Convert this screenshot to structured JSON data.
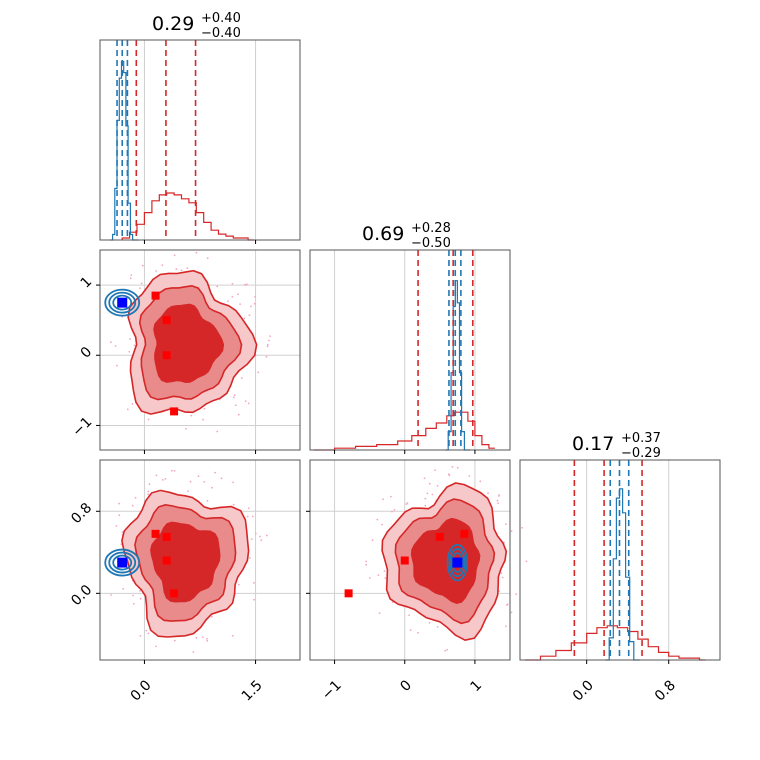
{
  "colors": {
    "posterior_red": "#d62728",
    "truth_blue": "#1f77b4",
    "fill_dark": "#d62728",
    "fill_mid": "#e98a8b",
    "fill_light": "#f6c8c9",
    "marker_red": "#ff0000",
    "marker_blue": "#0000ff",
    "frame": "#555555",
    "grid": "#d0d0d0"
  },
  "titles": {
    "p0": {
      "value": "0.29",
      "plus": "+0.40",
      "minus": "−0.40"
    },
    "p1": {
      "value": "0.69",
      "plus": "+0.28",
      "minus": "−0.50"
    },
    "p2": {
      "value": "0.17",
      "plus": "+0.37",
      "minus": "−0.29"
    }
  },
  "chart_data": {
    "type": "corner",
    "parameters": [
      "p0",
      "p1",
      "p2"
    ],
    "ranges": {
      "p0": [
        -0.6,
        2.1
      ],
      "p1": [
        -1.35,
        1.5
      ],
      "p2": [
        -0.65,
        1.3
      ]
    },
    "grid": true,
    "ticks": {
      "p0": {
        "values": [
          0.0,
          1.5
        ],
        "labels": [
          "0.0",
          "1.5"
        ]
      },
      "p1": {
        "values": [
          -1,
          0,
          1
        ],
        "labels": [
          "−1",
          "0",
          "1"
        ]
      },
      "p2": {
        "values": [
          0.0,
          0.8
        ],
        "labels": [
          "0.0",
          "0.8"
        ]
      }
    },
    "quantiles": {
      "red": {
        "p0": [
          -0.11,
          0.29,
          0.69
        ],
        "p1": [
          0.19,
          0.69,
          0.97
        ],
        "p2": [
          -0.12,
          0.17,
          0.54
        ]
      },
      "blue": {
        "p0": [
          -0.37,
          -0.3,
          -0.23
        ],
        "p1": [
          0.63,
          0.72,
          0.8
        ],
        "p2": [
          0.23,
          0.32,
          0.41
        ]
      }
    },
    "red_markers": {
      "p0": [
        0.15,
        0.3,
        0.3,
        0.4
      ],
      "p1": [
        0.85,
        0.5,
        0.0,
        -0.8
      ],
      "p2": [
        0.58,
        0.55,
        0.32,
        0.0
      ]
    },
    "blue_marker": {
      "p0": -0.3,
      "p1": 0.75,
      "p2": 0.3
    },
    "series": [
      {
        "panel": "p0",
        "color": "red",
        "kind": "step-histogram",
        "x": [
          -0.3,
          -0.2,
          -0.1,
          0.0,
          0.1,
          0.2,
          0.3,
          0.4,
          0.5,
          0.6,
          0.7,
          0.8,
          0.9,
          1.0,
          1.1,
          1.2,
          1.3,
          1.4
        ],
        "y": [
          0.01,
          0.04,
          0.08,
          0.14,
          0.2,
          0.23,
          0.24,
          0.23,
          0.21,
          0.19,
          0.14,
          0.09,
          0.05,
          0.03,
          0.02,
          0.01,
          0.01,
          0.0
        ]
      },
      {
        "panel": "p0",
        "color": "blue",
        "kind": "step-histogram",
        "x": [
          -0.46,
          -0.43,
          -0.4,
          -0.37,
          -0.34,
          -0.31,
          -0.28,
          -0.25,
          -0.22,
          -0.19,
          -0.16
        ],
        "y": [
          0.0,
          0.03,
          0.28,
          0.65,
          0.88,
          0.97,
          0.91,
          0.62,
          0.2,
          0.03,
          0.0
        ]
      },
      {
        "panel": "p1",
        "color": "red",
        "kind": "step-histogram",
        "x": [
          -1.3,
          -1.0,
          -0.7,
          -0.4,
          -0.1,
          0.1,
          0.3,
          0.45,
          0.6,
          0.7,
          0.8,
          0.9,
          1.0,
          1.1,
          1.2
        ],
        "y": [
          0.0,
          0.01,
          0.02,
          0.03,
          0.05,
          0.08,
          0.12,
          0.15,
          0.19,
          0.21,
          0.21,
          0.16,
          0.08,
          0.03,
          0.01
        ]
      },
      {
        "panel": "p1",
        "color": "blue",
        "kind": "step-histogram",
        "x": [
          0.58,
          0.62,
          0.66,
          0.69,
          0.72,
          0.75,
          0.78,
          0.81,
          0.85
        ],
        "y": [
          0.0,
          0.1,
          0.42,
          0.78,
          0.92,
          0.8,
          0.42,
          0.1,
          0.0
        ]
      },
      {
        "panel": "p2",
        "color": "red",
        "kind": "step-histogram",
        "x": [
          -0.6,
          -0.45,
          -0.3,
          -0.15,
          0.0,
          0.1,
          0.2,
          0.3,
          0.4,
          0.5,
          0.6,
          0.7,
          0.8,
          0.9,
          1.0,
          1.1
        ],
        "y": [
          0.0,
          0.02,
          0.05,
          0.09,
          0.14,
          0.17,
          0.18,
          0.17,
          0.15,
          0.11,
          0.07,
          0.04,
          0.02,
          0.01,
          0.01,
          0.0
        ]
      },
      {
        "panel": "p2",
        "color": "blue",
        "kind": "step-histogram",
        "x": [
          0.18,
          0.22,
          0.26,
          0.29,
          0.32,
          0.35,
          0.38,
          0.42,
          0.46
        ],
        "y": [
          0.0,
          0.12,
          0.55,
          0.88,
          0.93,
          0.8,
          0.45,
          0.1,
          0.0
        ]
      }
    ]
  }
}
